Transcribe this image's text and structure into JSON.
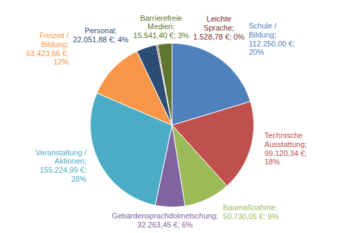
{
  "chart_data": {
    "type": "pie",
    "categories": [
      "Schule / Bildung",
      "Technische Ausstattung",
      "Baumaßnahme",
      "Gebärdensprachdolmetschung",
      "Veranstaltung / Aktionen",
      "Freizeit / Bildung",
      "Personal",
      "Leichte Sprache",
      "Barrierefreie Medien"
    ],
    "values": [
      112250.0,
      99120.34,
      50730.05,
      32263.45,
      155224.99,
      63423.66,
      22051.88,
      1528.78,
      15541.4
    ],
    "value_labels": [
      "Schule / Bildung; 112.250,00 €; 20%",
      "Technische Ausstattung; 99.120,34 €; 18%",
      "Baumaßnahme; 50.730,05 €; 9%",
      "Gebärdensprachdolmetschung; 32.263,45 €; 6%",
      "Veranstaltung / Aktionen; 155.224,99 €; 28%",
      "Freizeit / Bildung; 63.423,66 €; 12%",
      "Personal; 22.051,88 €; 4%",
      "Leichte Sprache; 1.528,78 €; 0%",
      "Barrierefreie Medien; 15.541,40 €; 3%"
    ],
    "colors": [
      "#4f81bd",
      "#c0504d",
      "#9bbb59",
      "#8064a2",
      "#4bacc6",
      "#f79646",
      "#2c4d75",
      "#772c2a",
      "#5f7530"
    ],
    "data_labels": true
  }
}
